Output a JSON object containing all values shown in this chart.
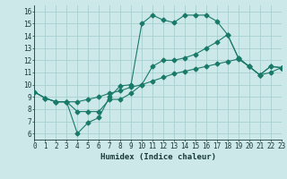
{
  "xlabel": "Humidex (Indice chaleur)",
  "xlim": [
    0,
    23
  ],
  "ylim": [
    5.5,
    16.5
  ],
  "xticks": [
    0,
    1,
    2,
    3,
    4,
    5,
    6,
    7,
    8,
    9,
    10,
    11,
    12,
    13,
    14,
    15,
    16,
    17,
    18,
    19,
    20,
    21,
    22,
    23
  ],
  "yticks": [
    6,
    7,
    8,
    9,
    10,
    11,
    12,
    13,
    14,
    15,
    16
  ],
  "background_color": "#cce8e8",
  "grid_color": "#a8d0d0",
  "line_color": "#1a7a6a",
  "line1_x": [
    0,
    1,
    2,
    3,
    4,
    5,
    6,
    7,
    8,
    9,
    10,
    11,
    12,
    13,
    14,
    15,
    16,
    17,
    18,
    19,
    20,
    21,
    22,
    23
  ],
  "line1_y": [
    9.4,
    8.9,
    8.6,
    8.6,
    6.0,
    6.9,
    7.3,
    9.0,
    9.9,
    10.0,
    15.0,
    15.7,
    15.3,
    15.1,
    15.7,
    15.7,
    15.7,
    15.2,
    14.1,
    12.2,
    11.5,
    10.8,
    11.5,
    11.4
  ],
  "line2_x": [
    0,
    1,
    2,
    3,
    4,
    5,
    6,
    7,
    8,
    9,
    10,
    11,
    12,
    13,
    14,
    15,
    16,
    17,
    18,
    19,
    20,
    21,
    22,
    23
  ],
  "line2_y": [
    9.4,
    8.9,
    8.6,
    8.6,
    7.8,
    7.8,
    7.8,
    8.8,
    8.8,
    9.3,
    10.0,
    11.5,
    12.0,
    12.0,
    12.2,
    12.5,
    13.0,
    13.5,
    14.1,
    12.2,
    11.5,
    10.8,
    11.5,
    11.4
  ],
  "line3_x": [
    0,
    1,
    2,
    3,
    4,
    5,
    6,
    7,
    8,
    9,
    10,
    11,
    12,
    13,
    14,
    15,
    16,
    17,
    18,
    19,
    20,
    21,
    22,
    23
  ],
  "line3_y": [
    9.4,
    8.9,
    8.6,
    8.6,
    8.6,
    8.8,
    9.0,
    9.3,
    9.5,
    9.8,
    10.0,
    10.3,
    10.6,
    10.9,
    11.1,
    11.3,
    11.5,
    11.7,
    11.9,
    12.1,
    11.5,
    10.8,
    11.0,
    11.4
  ],
  "tick_fontsize": 5.5,
  "xlabel_fontsize": 6.5,
  "marker_size": 2.5
}
